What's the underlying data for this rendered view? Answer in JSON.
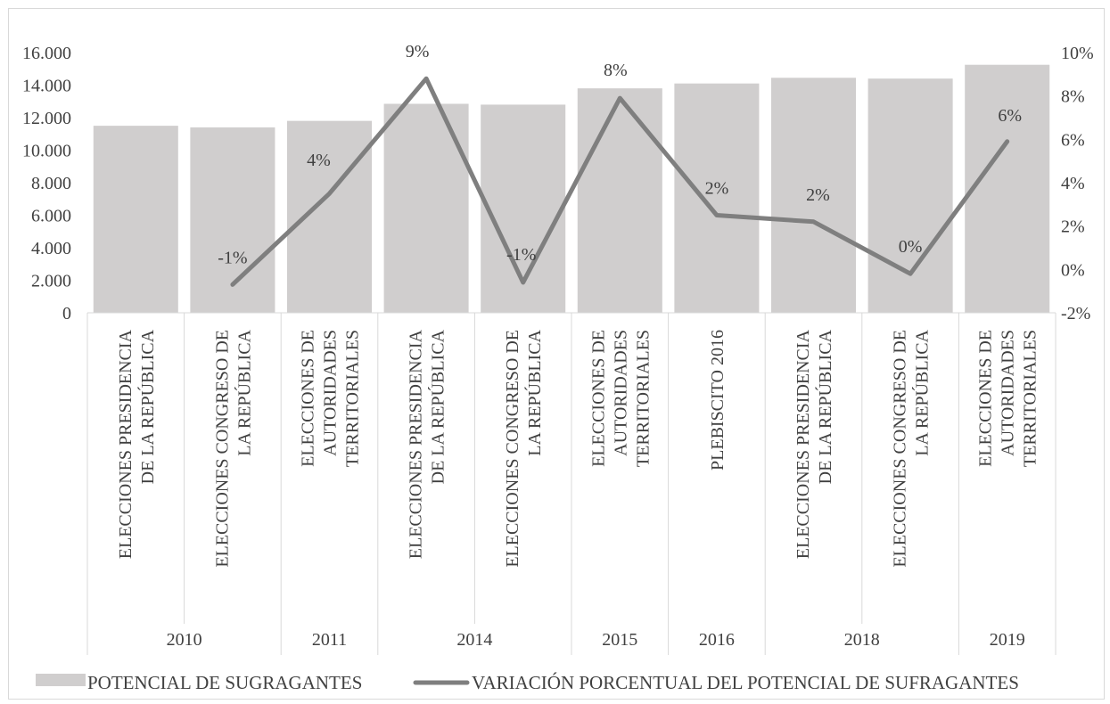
{
  "chart_data": {
    "type": "bar",
    "categories": [
      [
        "ELECCIONES PRESIDENCIA",
        "DE LA REPÚBLICA"
      ],
      [
        "ELECCIONES CONGRESO DE",
        "LA REPÚBLICA"
      ],
      [
        "ELECCIONES DE",
        "AUTORIDADES",
        "TERRITORIALES"
      ],
      [
        "ELECCIONES PRESIDENCIA",
        "DE LA REPÚBLICA"
      ],
      [
        "ELECCIONES CONGRESO DE",
        "LA REPÚBLICA"
      ],
      [
        "ELECCIONES DE",
        "AUTORIDADES",
        "TERRITORIALES"
      ],
      [
        "PLEBISCITO 2016"
      ],
      [
        "ELECCIONES PRESIDENCIA",
        "DE LA REPÚBLICA"
      ],
      [
        "ELECCIONES CONGRESO DE",
        "LA REPÚBLICA"
      ],
      [
        "ELECCIONES DE",
        "AUTORIDADES",
        "TERRITORIALES"
      ]
    ],
    "year_groups": [
      {
        "label": "2010",
        "count": 2
      },
      {
        "label": "2011",
        "count": 1
      },
      {
        "label": "2014",
        "count": 2
      },
      {
        "label": "2015",
        "count": 1
      },
      {
        "label": "2016",
        "count": 1
      },
      {
        "label": "2018",
        "count": 2
      },
      {
        "label": "2019",
        "count": 1
      }
    ],
    "series": [
      {
        "name": "POTENCIAL DE  SUGRAGANTES",
        "kind": "bar",
        "axis": "left",
        "color": "#d0cece",
        "values": [
          11500,
          11400,
          11800,
          12850,
          12800,
          13800,
          14100,
          14450,
          14400,
          15250
        ]
      },
      {
        "name": "VARIACIÓN PORCENTUAL DEL POTENCIAL DE SUFRAGANTES",
        "kind": "line",
        "axis": "right",
        "color": "#7f7f7f",
        "values": [
          null,
          -0.7,
          3.5,
          8.8,
          -0.6,
          7.9,
          2.5,
          2.2,
          -0.2,
          5.9
        ],
        "data_labels": [
          null,
          "-1%",
          "4%",
          "9%",
          "-1%",
          "8%",
          "2%",
          "2%",
          "0%",
          "6%"
        ]
      }
    ],
    "y_left": {
      "min": 0,
      "max": 16000,
      "step": 2000,
      "tick_labels": [
        "0",
        "2.000",
        "4.000",
        "6.000",
        "8.000",
        "10.000",
        "12.000",
        "14.000",
        "16.000"
      ]
    },
    "y_right": {
      "min": -2,
      "max": 10,
      "step": 2,
      "tick_labels": [
        "-2%",
        "0%",
        "2%",
        "4%",
        "6%",
        "8%",
        "10%"
      ]
    },
    "grid": false,
    "legend_position": "bottom"
  }
}
